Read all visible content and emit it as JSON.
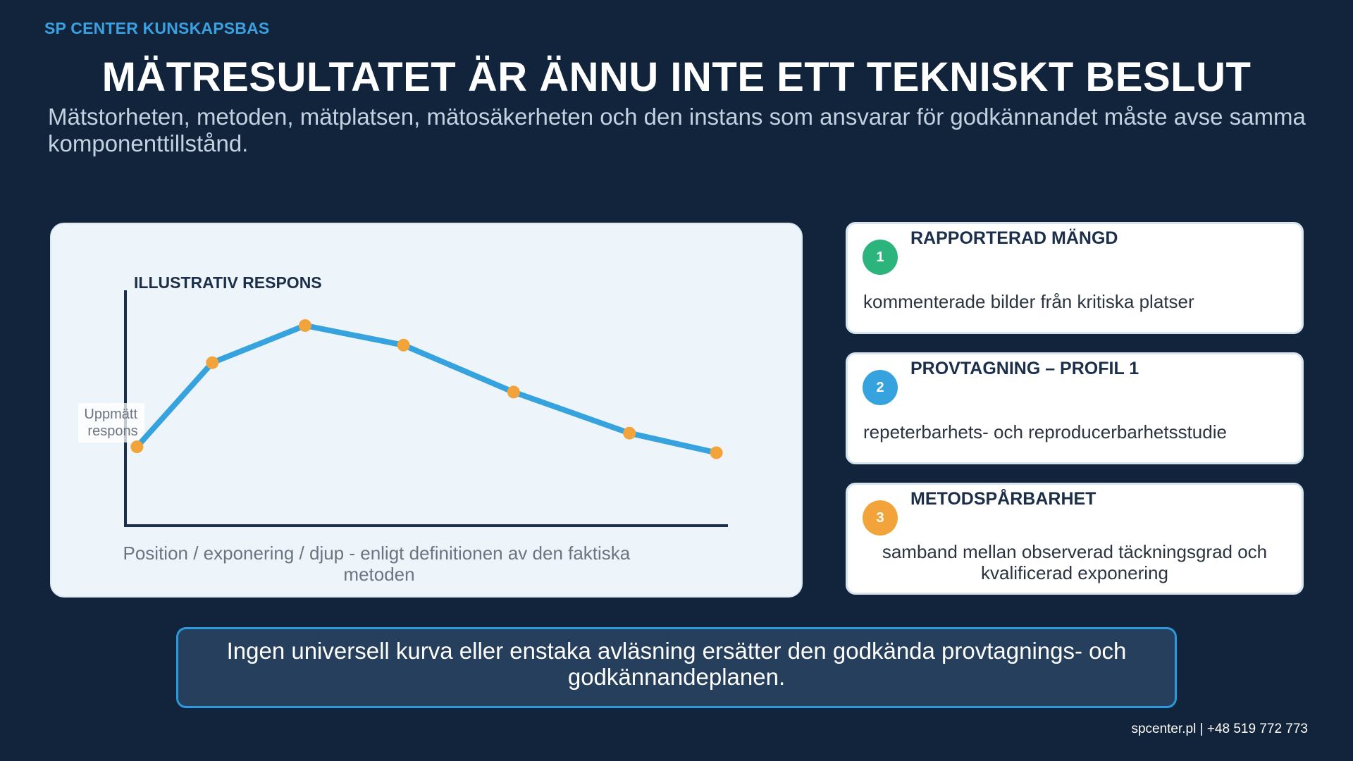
{
  "header": {
    "brand": "SP CENTER KUNSKAPSBAS",
    "title": "MÄTRESULTATET ÄR ÄNNU INTE ETT TEKNISKT BESLUT",
    "subtitle": "Mätstorheten, metoden, mätplatsen, mätosäkerheten och den instans som ansvarar för godkännandet måste avse samma komponenttillstånd."
  },
  "chart_data": {
    "type": "line",
    "title": "ILLUSTRATIV RESPONS",
    "ylabel_line1": "Uppmätt",
    "ylabel_line2": "respons",
    "xlabel_line1": "Position / exponering / djup - enligt definitionen av den faktiska",
    "xlabel_line2": "metoden",
    "x": [
      0.0,
      0.13,
      0.29,
      0.46,
      0.65,
      0.85,
      1.0
    ],
    "y": [
      0.2,
      0.63,
      0.82,
      0.72,
      0.48,
      0.27,
      0.17
    ],
    "xlim": [
      -0.02,
      1.02
    ],
    "ylim": [
      -0.21,
      1.0
    ],
    "line_color": "#36a3de",
    "marker_color": "#f2a43a",
    "axis_color": "#1b2e4a",
    "grid": false,
    "legend": "none"
  },
  "cards": [
    {
      "number": "1",
      "title": "RAPPORTERAD MÄNGD",
      "body": "kommenterade bilder från kritiska platser",
      "color": "#2bb57c"
    },
    {
      "number": "2",
      "title": "PROVTAGNING – PROFIL 1",
      "body": "repeterbarhets- och reproducerbarhetsstudie",
      "color": "#36a3de"
    },
    {
      "number": "3",
      "title": "METODSPÅRBARHET",
      "body": "samband mellan observerad täckningsgrad och kvalificerad exponering",
      "color": "#f2a43a"
    }
  ],
  "callout": {
    "text": "Ingen universell kurva eller enstaka avläsning ersätter den godkända provtagnings- och godkännandeplanen."
  },
  "footer": {
    "text": "spcenter.pl  |  +48 519 772 773"
  }
}
